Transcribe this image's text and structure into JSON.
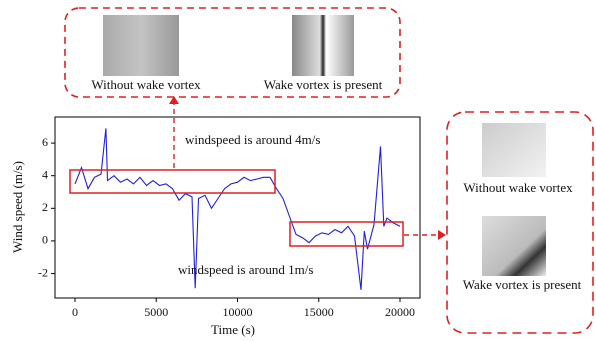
{
  "chart_data": {
    "type": "line",
    "xlabel": "Time (s)",
    "ylabel": "Wind speed (m/s)",
    "x": [
      0,
      400,
      800,
      1200,
      1600,
      1900,
      2000,
      2400,
      2800,
      3200,
      3600,
      4000,
      4400,
      4800,
      5200,
      5600,
      6000,
      6400,
      6800,
      7200,
      7400,
      7600,
      8000,
      8400,
      8800,
      9200,
      9600,
      10000,
      10400,
      10800,
      11200,
      11600,
      12000,
      12400,
      12800,
      13200,
      13600,
      14000,
      14400,
      14800,
      15200,
      15600,
      16000,
      16400,
      16800,
      17200,
      17600,
      17800,
      18000,
      18400,
      18800,
      19000,
      19200,
      19600,
      20000
    ],
    "series": [
      {
        "color": "#1f1fe0",
        "values": [
          3.5,
          4.5,
          3.2,
          3.9,
          4.1,
          6.9,
          3.7,
          4.0,
          3.6,
          3.8,
          3.5,
          3.9,
          3.4,
          3.7,
          3.4,
          3.5,
          3.2,
          2.5,
          2.9,
          2.7,
          -2.9,
          2.6,
          2.8,
          2.0,
          2.6,
          3.2,
          3.5,
          3.6,
          3.9,
          3.7,
          3.8,
          3.9,
          3.9,
          3.2,
          2.6,
          1.5,
          0.4,
          0.2,
          -0.1,
          0.3,
          0.5,
          0.4,
          0.7,
          0.5,
          0.9,
          0.3,
          -3.0,
          0.6,
          -0.5,
          1.0,
          5.8,
          0.9,
          1.4,
          1.1,
          0.9
        ]
      }
    ],
    "xlim": [
      -1230,
      21230
    ],
    "ylim": [
      -3.5,
      7.6
    ],
    "xticks": [
      0,
      5000,
      10000,
      15000,
      20000
    ],
    "yticks": [
      -2,
      0,
      2,
      4,
      6
    ],
    "annotations": [
      "windspeed is around 4m/s",
      "windspeed is around 1m/s"
    ]
  },
  "panels": {
    "top": [
      "Without wake vortex",
      "Wake vortex is present"
    ],
    "right": [
      "Without wake vortex",
      "Wake vortex is present"
    ]
  }
}
